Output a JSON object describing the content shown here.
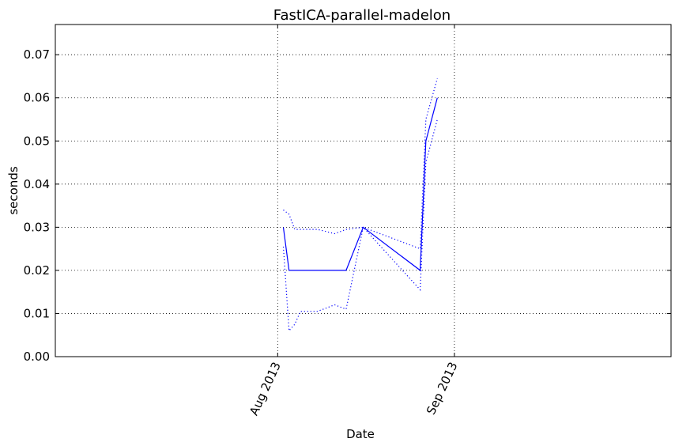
{
  "chart_data": {
    "type": "line",
    "title": "FastICA-parallel-madelon",
    "xlabel": "Date",
    "ylabel": "seconds",
    "x_axis_type": "date",
    "xlim": [
      "2013-06-23",
      "2013-10-09"
    ],
    "ylim": [
      0,
      0.077
    ],
    "grid": true,
    "grid_style": "dotted",
    "y_ticks": [
      {
        "value": 0.0,
        "label": "0.00"
      },
      {
        "value": 0.01,
        "label": "0.01"
      },
      {
        "value": 0.02,
        "label": "0.02"
      },
      {
        "value": 0.03,
        "label": "0.03"
      },
      {
        "value": 0.04,
        "label": "0.04"
      },
      {
        "value": 0.05,
        "label": "0.05"
      },
      {
        "value": 0.06,
        "label": "0.06"
      },
      {
        "value": 0.07,
        "label": "0.07"
      }
    ],
    "x_ticks": [
      {
        "value": "2013-08-01",
        "label": "Aug 2013"
      },
      {
        "value": "2013-09-01",
        "label": "Sep 2013"
      }
    ],
    "series": [
      {
        "role": "mean",
        "line_style": "solid",
        "color": "#0000ff",
        "points": [
          {
            "x": "2013-08-02",
            "y": 0.03
          },
          {
            "x": "2013-08-03",
            "y": 0.02
          },
          {
            "x": "2013-08-13",
            "y": 0.02
          },
          {
            "x": "2013-08-16",
            "y": 0.03
          },
          {
            "x": "2013-08-26",
            "y": 0.02
          },
          {
            "x": "2013-08-27",
            "y": 0.05
          },
          {
            "x": "2013-08-29",
            "y": 0.06
          }
        ]
      },
      {
        "role": "upper bound",
        "line_style": "dotted",
        "color": "#0000ff",
        "points": [
          {
            "x": "2013-08-02",
            "y": 0.034
          },
          {
            "x": "2013-08-03",
            "y": 0.033
          },
          {
            "x": "2013-08-04",
            "y": 0.0295
          },
          {
            "x": "2013-08-06",
            "y": 0.0295
          },
          {
            "x": "2013-08-08",
            "y": 0.0295
          },
          {
            "x": "2013-08-11",
            "y": 0.0285
          },
          {
            "x": "2013-08-13",
            "y": 0.0295
          },
          {
            "x": "2013-08-16",
            "y": 0.03
          },
          {
            "x": "2013-08-26",
            "y": 0.025
          },
          {
            "x": "2013-08-27",
            "y": 0.055
          },
          {
            "x": "2013-08-29",
            "y": 0.0645
          }
        ]
      },
      {
        "role": "lower bound",
        "line_style": "dotted",
        "color": "#0000ff",
        "points": [
          {
            "x": "2013-08-02",
            "y": 0.0255
          },
          {
            "x": "2013-08-03",
            "y": 0.006
          },
          {
            "x": "2013-08-04",
            "y": 0.0075
          },
          {
            "x": "2013-08-05",
            "y": 0.0105
          },
          {
            "x": "2013-08-08",
            "y": 0.0105
          },
          {
            "x": "2013-08-11",
            "y": 0.012
          },
          {
            "x": "2013-08-13",
            "y": 0.011
          },
          {
            "x": "2013-08-16",
            "y": 0.03
          },
          {
            "x": "2013-08-26",
            "y": 0.0155
          },
          {
            "x": "2013-08-27",
            "y": 0.045
          },
          {
            "x": "2013-08-29",
            "y": 0.055
          }
        ]
      }
    ]
  }
}
